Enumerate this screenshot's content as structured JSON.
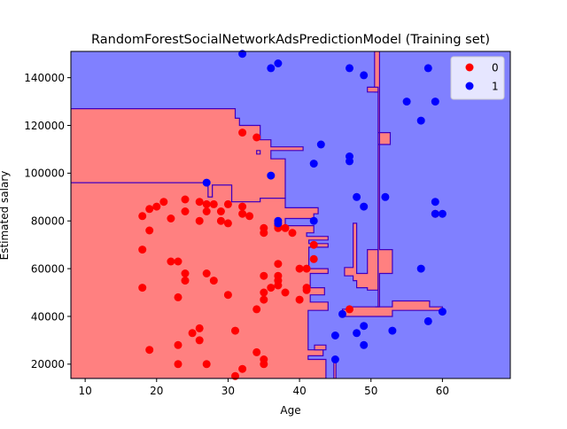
{
  "chart_data": {
    "type": "scatter",
    "title": "RandomForestSocialNetworkAdsPredictionModel (Training set)",
    "xlabel": "Age",
    "ylabel": "Estimated salary",
    "xlim": [
      8,
      69.5
    ],
    "ylim": [
      14000,
      151000
    ],
    "xticks": [
      10,
      20,
      30,
      40,
      50,
      60
    ],
    "yticks": [
      20000,
      40000,
      60000,
      80000,
      100000,
      120000,
      140000
    ],
    "background_region_color": "#8080ff",
    "grid": false,
    "legend": {
      "position": "top-right",
      "entries": [
        "0",
        "1"
      ]
    },
    "colors": {
      "class_0_point": "#ff0000",
      "class_1_point": "#0000ff",
      "class_0_region": "#ff8080",
      "class_1_region": "#8080ff",
      "boundary": "#4000bf"
    },
    "regions": [
      {
        "class": "0",
        "polygon": [
          [
            8,
            127000
          ],
          [
            31,
            127000
          ],
          [
            31,
            123000
          ],
          [
            31.6,
            123000
          ],
          [
            31.6,
            120000
          ],
          [
            34.5,
            120000
          ],
          [
            34.5,
            114000
          ],
          [
            36,
            114000
          ],
          [
            36,
            111000
          ],
          [
            40.5,
            111000
          ],
          [
            40.5,
            109500
          ],
          [
            36,
            109500
          ],
          [
            36,
            106000
          ],
          [
            38,
            106000
          ],
          [
            38,
            89500
          ],
          [
            34.5,
            89500
          ],
          [
            34.5,
            88000
          ],
          [
            30.5,
            88000
          ],
          [
            30.5,
            95000
          ],
          [
            27.8,
            95000
          ],
          [
            27.8,
            90000
          ],
          [
            27.2,
            90000
          ],
          [
            27.2,
            96000
          ],
          [
            8,
            96000
          ]
        ]
      },
      {
        "class": "0",
        "polygon": [
          [
            8,
            96000
          ],
          [
            27.2,
            96000
          ],
          [
            27.2,
            90000
          ],
          [
            27.8,
            90000
          ],
          [
            27.8,
            95000
          ],
          [
            30.5,
            95000
          ],
          [
            30.5,
            88000
          ],
          [
            34.5,
            88000
          ],
          [
            34.5,
            89500
          ],
          [
            38,
            89500
          ],
          [
            38,
            85500
          ],
          [
            42.6,
            85500
          ],
          [
            42.6,
            83000
          ],
          [
            42,
            83000
          ],
          [
            42,
            81000
          ],
          [
            38,
            81000
          ],
          [
            38,
            78000
          ],
          [
            42,
            78000
          ],
          [
            42,
            75000
          ],
          [
            41,
            75000
          ],
          [
            41,
            73500
          ],
          [
            44,
            73500
          ],
          [
            44,
            72000
          ],
          [
            41.3,
            72000
          ],
          [
            41.3,
            70500
          ],
          [
            44,
            70500
          ],
          [
            44,
            69000
          ],
          [
            41.3,
            69000
          ],
          [
            41.3,
            60000
          ],
          [
            44,
            60000
          ],
          [
            44,
            58000
          ],
          [
            41.5,
            58000
          ],
          [
            41.5,
            52000
          ],
          [
            43.5,
            52000
          ],
          [
            43.5,
            49000
          ],
          [
            41.5,
            49000
          ],
          [
            41.5,
            46000
          ],
          [
            44,
            46000
          ],
          [
            44,
            42500
          ],
          [
            41.2,
            42500
          ],
          [
            41.2,
            26000
          ],
          [
            43.3,
            26000
          ],
          [
            43.3,
            23500
          ],
          [
            41.2,
            23500
          ],
          [
            41.2,
            22000
          ],
          [
            43.7,
            22000
          ],
          [
            43.7,
            14000
          ],
          [
            8,
            14000
          ]
        ]
      },
      {
        "class": "0",
        "polygon": [
          [
            44.8,
            14000
          ],
          [
            45.1,
            14000
          ],
          [
            45.1,
            22500
          ],
          [
            44.8,
            22500
          ]
        ]
      },
      {
        "class": "0",
        "polygon": [
          [
            46,
            40000
          ],
          [
            46,
            43000
          ],
          [
            46.8,
            43000
          ],
          [
            46.8,
            44000
          ],
          [
            53,
            44000
          ],
          [
            53,
            46500
          ],
          [
            58.2,
            46500
          ],
          [
            58.2,
            44000
          ],
          [
            60,
            44000
          ],
          [
            60,
            42500
          ],
          [
            53,
            42500
          ],
          [
            53,
            40000
          ]
        ]
      },
      {
        "class": "0",
        "polygon": [
          [
            46.3,
            57000
          ],
          [
            46.3,
            60500
          ],
          [
            47.5,
            60500
          ],
          [
            47.5,
            79000
          ],
          [
            48,
            79000
          ],
          [
            48,
            58000
          ],
          [
            49.5,
            58000
          ],
          [
            49.5,
            68000
          ],
          [
            51,
            68000
          ],
          [
            51,
            51000
          ],
          [
            49.5,
            51000
          ],
          [
            49.5,
            52000
          ],
          [
            48,
            52000
          ],
          [
            48,
            55000
          ],
          [
            47.5,
            55000
          ],
          [
            47.5,
            57000
          ]
        ]
      },
      {
        "class": "0",
        "polygon": [
          [
            50.6,
            44000
          ],
          [
            51,
            44000
          ],
          [
            51,
            117000
          ],
          [
            52.7,
            117000
          ],
          [
            52.7,
            112000
          ],
          [
            51,
            112000
          ],
          [
            51,
            134000
          ],
          [
            50.5,
            134000
          ],
          [
            50.5,
            151000
          ],
          [
            51.2,
            151000
          ],
          [
            51.2,
            68000
          ],
          [
            53,
            68000
          ],
          [
            53,
            58000
          ],
          [
            51.2,
            58000
          ],
          [
            51.2,
            44000
          ]
        ]
      },
      {
        "class": "0",
        "polygon": [
          [
            49.5,
            136000
          ],
          [
            49.5,
            134000
          ],
          [
            51,
            134000
          ],
          [
            51,
            136000
          ]
        ]
      },
      {
        "class": "0",
        "polygon": [
          [
            34,
            109500
          ],
          [
            34.5,
            109500
          ],
          [
            34.5,
            108000
          ],
          [
            34,
            108000
          ]
        ]
      },
      {
        "class": "0",
        "polygon": [
          [
            42.1,
            26000
          ],
          [
            43.7,
            26000
          ],
          [
            43.7,
            28000
          ],
          [
            42.1,
            28000
          ]
        ]
      }
    ],
    "series": [
      {
        "name": "0",
        "color": "#ff0000",
        "points": [
          [
            18,
            82000
          ],
          [
            19,
            85000
          ],
          [
            20,
            86000
          ],
          [
            21,
            88000
          ],
          [
            22,
            81000
          ],
          [
            24,
            89000
          ],
          [
            24,
            84000
          ],
          [
            26,
            88000
          ],
          [
            27,
            87000
          ],
          [
            27,
            84000
          ],
          [
            28,
            87000
          ],
          [
            29,
            84000
          ],
          [
            29,
            80000
          ],
          [
            30,
            79000
          ],
          [
            30,
            87000
          ],
          [
            32,
            117000
          ],
          [
            34,
            115000
          ],
          [
            18,
            68000
          ],
          [
            19,
            76000
          ],
          [
            22,
            63000
          ],
          [
            23,
            63000
          ],
          [
            24,
            58000
          ],
          [
            24,
            55000
          ],
          [
            27,
            58000
          ],
          [
            28,
            55000
          ],
          [
            18,
            52000
          ],
          [
            23,
            48000
          ],
          [
            26,
            80000
          ],
          [
            30,
            49000
          ],
          [
            32,
            86000
          ],
          [
            32,
            83000
          ],
          [
            33,
            82000
          ],
          [
            35,
            77000
          ],
          [
            35,
            75000
          ],
          [
            37,
            78000
          ],
          [
            37,
            77000
          ],
          [
            38,
            77000
          ],
          [
            39,
            75000
          ],
          [
            42,
            70000
          ],
          [
            40,
            60000
          ],
          [
            41,
            60000
          ],
          [
            37,
            62000
          ],
          [
            37,
            57000
          ],
          [
            35,
            57000
          ],
          [
            37,
            55000
          ],
          [
            37,
            53000
          ],
          [
            36,
            52000
          ],
          [
            38,
            50000
          ],
          [
            35,
            50000
          ],
          [
            35,
            47000
          ],
          [
            40,
            47000
          ],
          [
            41,
            51000
          ],
          [
            41,
            52000
          ],
          [
            42,
            64000
          ],
          [
            34,
            43000
          ],
          [
            19,
            26000
          ],
          [
            23,
            28000
          ],
          [
            25,
            33000
          ],
          [
            26,
            35000
          ],
          [
            26,
            30000
          ],
          [
            23,
            20000
          ],
          [
            27,
            20000
          ],
          [
            31,
            34000
          ],
          [
            34,
            25000
          ],
          [
            35,
            22000
          ],
          [
            35,
            20000
          ],
          [
            32,
            18000
          ],
          [
            31,
            15000
          ],
          [
            47,
            43000
          ],
          [
            59,
            83000
          ]
        ]
      },
      {
        "name": "1",
        "color": "#0000ff",
        "points": [
          [
            32,
            150000
          ],
          [
            36,
            144000
          ],
          [
            37,
            146000
          ],
          [
            47,
            144000
          ],
          [
            49,
            141000
          ],
          [
            58,
            144000
          ],
          [
            55,
            130000
          ],
          [
            59,
            130000
          ],
          [
            57,
            122000
          ],
          [
            43,
            112000
          ],
          [
            42,
            104000
          ],
          [
            47,
            107000
          ],
          [
            47,
            105000
          ],
          [
            36,
            99000
          ],
          [
            27,
            96000
          ],
          [
            48,
            90000
          ],
          [
            52,
            90000
          ],
          [
            49,
            86000
          ],
          [
            59,
            88000
          ],
          [
            59,
            83000
          ],
          [
            60,
            83000
          ],
          [
            37,
            80000
          ],
          [
            42,
            80000
          ],
          [
            37,
            79000
          ],
          [
            57,
            60000
          ],
          [
            46,
            41000
          ],
          [
            60,
            42000
          ],
          [
            58,
            38000
          ],
          [
            48,
            33000
          ],
          [
            49,
            36000
          ],
          [
            53,
            34000
          ],
          [
            45,
            32000
          ],
          [
            49,
            28000
          ],
          [
            45,
            22000
          ]
        ]
      }
    ]
  }
}
